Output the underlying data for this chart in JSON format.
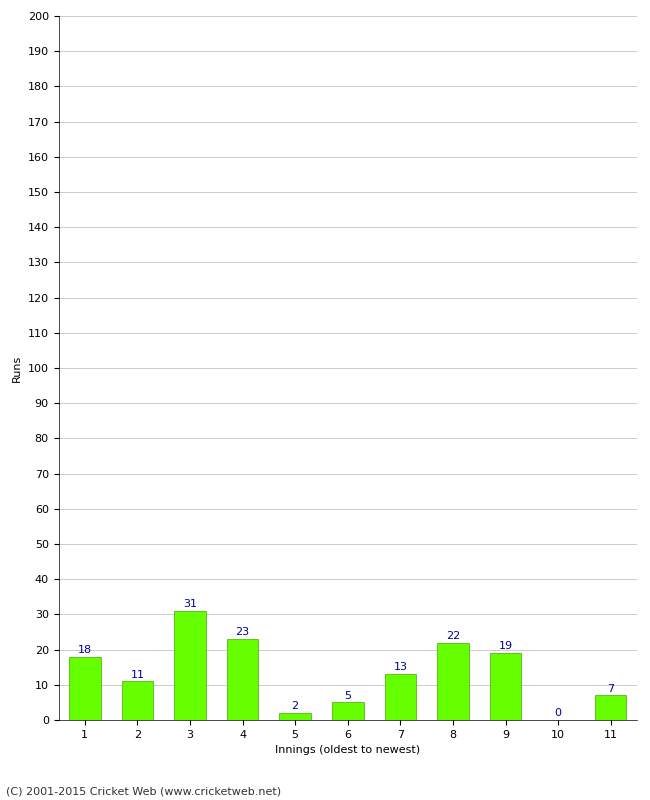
{
  "values": [
    18,
    11,
    31,
    23,
    2,
    5,
    13,
    22,
    19,
    0,
    7
  ],
  "categories": [
    "1",
    "2",
    "3",
    "4",
    "5",
    "6",
    "7",
    "8",
    "9",
    "10",
    "11"
  ],
  "xlabel": "Innings (oldest to newest)",
  "ylabel": "Runs",
  "ylim": [
    0,
    200
  ],
  "yticks": [
    0,
    10,
    20,
    30,
    40,
    50,
    60,
    70,
    80,
    90,
    100,
    110,
    120,
    130,
    140,
    150,
    160,
    170,
    180,
    190,
    200
  ],
  "bar_color": "#66ff00",
  "bar_edge_color": "#44aa00",
  "label_color": "#000099",
  "grid_color": "#cccccc",
  "background_color": "#ffffff",
  "footer": "(C) 2001-2015 Cricket Web (www.cricketweb.net)",
  "label_fontsize": 8,
  "axis_label_fontsize": 8,
  "tick_fontsize": 8,
  "footer_fontsize": 8
}
